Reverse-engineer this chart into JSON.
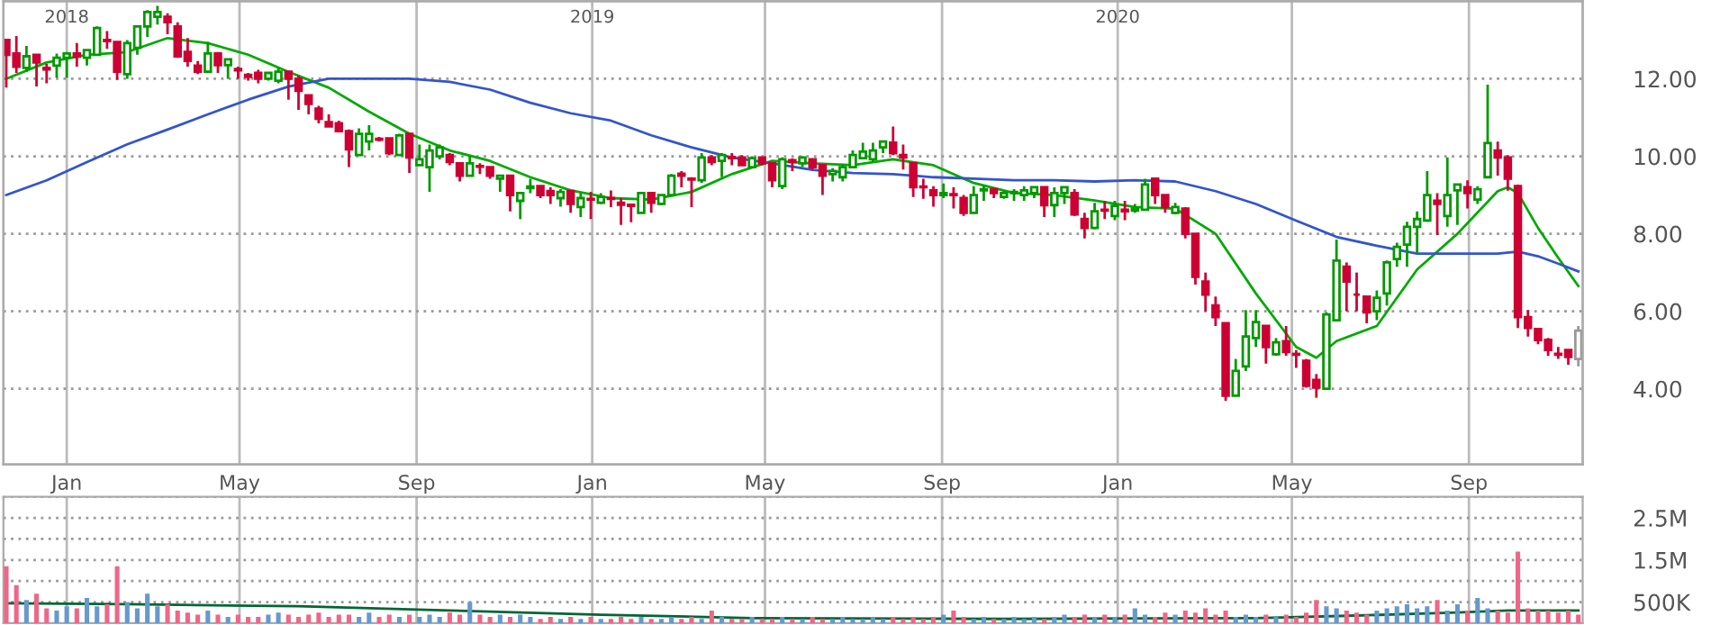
{
  "chart_data": [
    {
      "type": "candlestick",
      "x": [
        "2017-11-20",
        "2017-11-27",
        "2017-12-04",
        "2017-12-11",
        "2017-12-18",
        "2017-12-25",
        "2018-01-01",
        "2018-01-08",
        "2018-01-15",
        "2018-01-22",
        "2018-01-29",
        "2018-02-05",
        "2018-02-12",
        "2018-02-19",
        "2018-02-26",
        "2018-03-05",
        "2018-03-12",
        "2018-03-19",
        "2018-03-26",
        "2018-04-02",
        "2018-04-09",
        "2018-04-16",
        "2018-04-23",
        "2018-04-30",
        "2018-05-07",
        "2018-05-14",
        "2018-05-21",
        "2018-05-28",
        "2018-06-04",
        "2018-06-11",
        "2018-06-18",
        "2018-06-25",
        "2018-07-02",
        "2018-07-09",
        "2018-07-16",
        "2018-07-23",
        "2018-07-30",
        "2018-08-06",
        "2018-08-13",
        "2018-08-20",
        "2018-08-27",
        "2018-09-03",
        "2018-09-10",
        "2018-09-17",
        "2018-09-24",
        "2018-10-01",
        "2018-10-08",
        "2018-10-15",
        "2018-10-22",
        "2018-10-29",
        "2018-11-05",
        "2018-11-12",
        "2018-11-19",
        "2018-11-26",
        "2018-12-03",
        "2018-12-10",
        "2018-12-17",
        "2018-12-24",
        "2018-12-31",
        "2019-01-07",
        "2019-01-14",
        "2019-01-21",
        "2019-01-28",
        "2019-02-04",
        "2019-02-11",
        "2019-02-18",
        "2019-02-25",
        "2019-03-04",
        "2019-03-11",
        "2019-03-18",
        "2019-03-25",
        "2019-04-01",
        "2019-04-08",
        "2019-04-15",
        "2019-04-22",
        "2019-04-29",
        "2019-05-06",
        "2019-05-13",
        "2019-05-20",
        "2019-05-27",
        "2019-06-03",
        "2019-06-10",
        "2019-06-17",
        "2019-06-24",
        "2019-07-01",
        "2019-07-08",
        "2019-07-15",
        "2019-07-22",
        "2019-07-29",
        "2019-08-05",
        "2019-08-12",
        "2019-08-19",
        "2019-08-26",
        "2019-09-02",
        "2019-09-09",
        "2019-09-16",
        "2019-09-23",
        "2019-09-30",
        "2019-10-07",
        "2019-10-14",
        "2019-10-21",
        "2019-10-28",
        "2019-11-04",
        "2019-11-11",
        "2019-11-18",
        "2019-11-25",
        "2019-12-02",
        "2019-12-09",
        "2019-12-16",
        "2019-12-23",
        "2019-12-30",
        "2020-01-06",
        "2020-01-13",
        "2020-01-20",
        "2020-01-27",
        "2020-02-03",
        "2020-02-10",
        "2020-02-17",
        "2020-02-24",
        "2020-03-02",
        "2020-03-09",
        "2020-03-16",
        "2020-03-23",
        "2020-03-30",
        "2020-04-06",
        "2020-04-13",
        "2020-04-20",
        "2020-04-27",
        "2020-05-04",
        "2020-05-11",
        "2020-05-18",
        "2020-05-25",
        "2020-06-01",
        "2020-06-08",
        "2020-06-15",
        "2020-06-22",
        "2020-06-29",
        "2020-07-06",
        "2020-07-13",
        "2020-07-20",
        "2020-07-27",
        "2020-08-03",
        "2020-08-10",
        "2020-08-17",
        "2020-08-24",
        "2020-08-31",
        "2020-09-07",
        "2020-09-14",
        "2020-09-21",
        "2020-09-28",
        "2020-10-05",
        "2020-10-12",
        "2020-10-19",
        "2020-10-26",
        "2020-11-02",
        "2020-11-09",
        "2020-11-16"
      ],
      "ohlc": [
        [
          13.0,
          13.0,
          11.77,
          12.62
        ],
        [
          12.65,
          13.1,
          12.15,
          12.31
        ],
        [
          12.28,
          12.85,
          12.18,
          12.58
        ],
        [
          12.62,
          12.62,
          11.8,
          12.42
        ],
        [
          12.28,
          12.38,
          11.88,
          12.24
        ],
        [
          12.34,
          12.65,
          12.03,
          12.54
        ],
        [
          12.54,
          12.69,
          12.03,
          12.65
        ],
        [
          12.65,
          12.92,
          12.31,
          12.57
        ],
        [
          12.54,
          12.74,
          12.34,
          12.74
        ],
        [
          12.62,
          13.35,
          12.62,
          13.31
        ],
        [
          13.0,
          13.23,
          12.77,
          12.97
        ],
        [
          12.95,
          12.95,
          11.97,
          12.18
        ],
        [
          12.12,
          13.0,
          12.0,
          12.92
        ],
        [
          12.8,
          13.38,
          12.62,
          13.35
        ],
        [
          13.35,
          13.77,
          13.08,
          13.72
        ],
        [
          13.6,
          13.88,
          13.4,
          13.72
        ],
        [
          13.6,
          13.69,
          13.15,
          13.46
        ],
        [
          13.35,
          13.46,
          12.54,
          12.58
        ],
        [
          12.69,
          13.05,
          12.31,
          12.46
        ],
        [
          12.34,
          12.46,
          12.12,
          12.18
        ],
        [
          12.18,
          12.95,
          12.18,
          12.65
        ],
        [
          12.65,
          12.69,
          12.15,
          12.35
        ],
        [
          12.35,
          12.51,
          12.0,
          12.5
        ],
        [
          12.25,
          12.31,
          12.0,
          12.22
        ],
        [
          12.1,
          12.15,
          11.95,
          12.05
        ],
        [
          12.15,
          12.23,
          11.88,
          12.0
        ],
        [
          12.0,
          12.15,
          11.95,
          12.15
        ],
        [
          11.95,
          12.28,
          11.88,
          12.18
        ],
        [
          12.18,
          12.2,
          11.46,
          12.0
        ],
        [
          12.0,
          12.08,
          11.2,
          11.69
        ],
        [
          11.57,
          11.57,
          11.08,
          11.35
        ],
        [
          11.23,
          11.3,
          10.85,
          10.97
        ],
        [
          10.88,
          11.08,
          10.77,
          10.77
        ],
        [
          10.85,
          10.92,
          10.62,
          10.65
        ],
        [
          10.65,
          10.69,
          9.72,
          10.18
        ],
        [
          10.03,
          10.72,
          10.03,
          10.58
        ],
        [
          10.38,
          10.8,
          10.15,
          10.58
        ],
        [
          10.45,
          10.5,
          10.38,
          10.43
        ],
        [
          10.46,
          10.46,
          10.03,
          10.08
        ],
        [
          10.03,
          10.58,
          10.03,
          10.54
        ],
        [
          10.58,
          10.58,
          9.57,
          9.97
        ],
        [
          9.77,
          10.3,
          9.77,
          9.92
        ],
        [
          9.72,
          10.3,
          9.08,
          10.15
        ],
        [
          10.0,
          10.3,
          9.92,
          10.23
        ],
        [
          10.03,
          10.08,
          9.77,
          9.85
        ],
        [
          9.82,
          9.82,
          9.35,
          9.5
        ],
        [
          9.5,
          10.0,
          9.5,
          9.82
        ],
        [
          9.75,
          9.82,
          9.54,
          9.73
        ],
        [
          9.72,
          9.72,
          9.42,
          9.5
        ],
        [
          9.42,
          9.5,
          9.08,
          9.5
        ],
        [
          9.5,
          9.5,
          8.58,
          9.0
        ],
        [
          8.85,
          9.05,
          8.38,
          9.05
        ],
        [
          9.18,
          9.42,
          9.05,
          9.22
        ],
        [
          9.23,
          9.23,
          8.92,
          9.0
        ],
        [
          9.1,
          9.2,
          8.77,
          9.0
        ],
        [
          8.92,
          9.15,
          8.7,
          9.08
        ],
        [
          9.1,
          9.1,
          8.54,
          8.77
        ],
        [
          8.69,
          9.05,
          8.43,
          8.92
        ],
        [
          8.9,
          9.08,
          8.38,
          8.88
        ],
        [
          8.8,
          9.05,
          8.77,
          8.95
        ],
        [
          8.92,
          9.12,
          8.69,
          8.9
        ],
        [
          8.8,
          8.92,
          8.23,
          8.75
        ],
        [
          8.75,
          8.77,
          8.3,
          8.72
        ],
        [
          8.54,
          9.05,
          8.54,
          9.05
        ],
        [
          9.05,
          9.05,
          8.54,
          8.8
        ],
        [
          8.77,
          9.0,
          8.74,
          9.0
        ],
        [
          9.0,
          9.54,
          9.0,
          9.5
        ],
        [
          9.55,
          9.62,
          9.2,
          9.5
        ],
        [
          9.42,
          9.46,
          8.69,
          9.4
        ],
        [
          9.38,
          10.08,
          9.31,
          9.97
        ],
        [
          9.97,
          10.03,
          9.77,
          9.85
        ],
        [
          9.88,
          10.08,
          9.46,
          10.03
        ],
        [
          9.98,
          10.08,
          9.77,
          9.95
        ],
        [
          9.97,
          10.03,
          9.77,
          9.77
        ],
        [
          9.72,
          10.0,
          9.69,
          9.95
        ],
        [
          9.97,
          9.97,
          9.77,
          9.82
        ],
        [
          9.82,
          9.85,
          9.2,
          9.38
        ],
        [
          9.23,
          9.97,
          9.15,
          9.92
        ],
        [
          9.9,
          9.95,
          9.62,
          9.85
        ],
        [
          9.82,
          10.0,
          9.72,
          9.97
        ],
        [
          9.92,
          9.92,
          9.66,
          9.72
        ],
        [
          9.77,
          9.77,
          9.0,
          9.5
        ],
        [
          9.54,
          9.69,
          9.35,
          9.62
        ],
        [
          9.46,
          9.8,
          9.35,
          9.72
        ],
        [
          9.72,
          10.15,
          9.69,
          10.03
        ],
        [
          9.95,
          10.35,
          9.92,
          10.12
        ],
        [
          9.92,
          10.35,
          9.85,
          10.15
        ],
        [
          10.23,
          10.38,
          10.08,
          10.38
        ],
        [
          10.35,
          10.77,
          10.03,
          10.08
        ],
        [
          10.03,
          10.3,
          9.66,
          9.97
        ],
        [
          9.82,
          9.82,
          8.95,
          9.2
        ],
        [
          9.22,
          9.42,
          8.9,
          9.2
        ],
        [
          9.12,
          9.23,
          8.7,
          9.0
        ],
        [
          9.0,
          9.3,
          8.92,
          9.05
        ],
        [
          9.02,
          9.2,
          8.65,
          9.0
        ],
        [
          8.92,
          9.0,
          8.46,
          8.54
        ],
        [
          8.54,
          9.23,
          8.54,
          9.0
        ],
        [
          9.12,
          9.23,
          8.85,
          9.15
        ],
        [
          9.15,
          9.15,
          8.92,
          9.05
        ],
        [
          8.95,
          9.1,
          8.9,
          9.05
        ],
        [
          9.05,
          9.15,
          8.85,
          9.08
        ],
        [
          9.0,
          9.23,
          8.85,
          9.12
        ],
        [
          9.05,
          9.2,
          8.92,
          9.2
        ],
        [
          9.2,
          9.2,
          8.43,
          8.74
        ],
        [
          8.74,
          9.2,
          8.43,
          9.05
        ],
        [
          9.05,
          9.2,
          8.77,
          9.2
        ],
        [
          9.05,
          9.15,
          8.46,
          8.5
        ],
        [
          8.38,
          8.54,
          7.88,
          8.15
        ],
        [
          8.15,
          8.8,
          8.12,
          8.58
        ],
        [
          8.62,
          8.85,
          8.38,
          8.6
        ],
        [
          8.46,
          8.85,
          8.35,
          8.72
        ],
        [
          8.62,
          8.85,
          8.35,
          8.58
        ],
        [
          8.6,
          8.77,
          8.54,
          8.65
        ],
        [
          8.62,
          9.42,
          8.62,
          9.27
        ],
        [
          9.42,
          9.42,
          8.77,
          9.0
        ],
        [
          9.0,
          9.0,
          8.54,
          8.69
        ],
        [
          8.54,
          8.8,
          8.5,
          8.69
        ],
        [
          8.65,
          8.69,
          7.88,
          8.0
        ],
        [
          8.0,
          8.0,
          6.69,
          6.89
        ],
        [
          6.77,
          7.0,
          6.0,
          6.43
        ],
        [
          6.15,
          6.38,
          5.62,
          5.85
        ],
        [
          5.69,
          5.69,
          3.69,
          3.82
        ],
        [
          3.82,
          4.77,
          3.82,
          4.46
        ],
        [
          4.58,
          6.03,
          4.46,
          5.35
        ],
        [
          5.31,
          6.03,
          5.08,
          5.72
        ],
        [
          5.62,
          5.62,
          4.65,
          5.08
        ],
        [
          4.89,
          5.31,
          4.85,
          5.2
        ],
        [
          5.23,
          5.62,
          4.85,
          4.95
        ],
        [
          4.9,
          5.0,
          4.54,
          4.88
        ],
        [
          4.72,
          4.77,
          4.03,
          4.08
        ],
        [
          4.23,
          4.38,
          3.77,
          4.03
        ],
        [
          4.0,
          5.97,
          3.97,
          5.92
        ],
        [
          5.77,
          7.85,
          5.77,
          7.31
        ],
        [
          7.15,
          7.26,
          6.0,
          6.77
        ],
        [
          6.43,
          7.0,
          6.0,
          6.43
        ],
        [
          6.38,
          6.38,
          5.69,
          5.97
        ],
        [
          6.0,
          6.54,
          5.77,
          6.35
        ],
        [
          6.46,
          7.31,
          6.15,
          7.26
        ],
        [
          7.35,
          7.77,
          7.15,
          7.66
        ],
        [
          7.72,
          8.31,
          7.15,
          8.18
        ],
        [
          8.18,
          8.58,
          7.48,
          8.38
        ],
        [
          8.34,
          9.62,
          8.31,
          9.0
        ],
        [
          8.85,
          9.05,
          7.97,
          8.77
        ],
        [
          8.46,
          9.97,
          8.18,
          9.0
        ],
        [
          9.12,
          9.27,
          8.23,
          9.27
        ],
        [
          9.2,
          9.38,
          8.65,
          9.05
        ],
        [
          8.88,
          9.23,
          8.77,
          9.15
        ],
        [
          9.46,
          11.85,
          9.46,
          10.34
        ],
        [
          10.15,
          10.38,
          9.5,
          9.97
        ],
        [
          9.97,
          10.03,
          9.11,
          9.42
        ],
        [
          9.23,
          9.27,
          5.57,
          5.85
        ],
        [
          5.85,
          6.03,
          5.35,
          5.57
        ],
        [
          5.54,
          5.57,
          5.15,
          5.26
        ],
        [
          5.26,
          5.31,
          4.85,
          5.0
        ],
        [
          4.9,
          5.08,
          4.77,
          4.88
        ],
        [
          5.0,
          5.0,
          4.62,
          4.82
        ],
        [
          4.77,
          5.62,
          4.58,
          5.5
        ]
      ],
      "colors": [
        "#cc0033",
        "#cc0033",
        "#009900",
        "#cc0033",
        "#cc0033",
        "#009900",
        "#009900",
        "#cc0033",
        "#009900",
        "#009900",
        "#cc0033",
        "#cc0033",
        "#009900",
        "#009900",
        "#009900",
        "#009900",
        "#cc0033",
        "#cc0033",
        "#cc0033",
        "#cc0033",
        "#009900",
        "#cc0033",
        "#009900",
        "#cc0033",
        "#cc0033",
        "#cc0033",
        "#009900",
        "#009900",
        "#cc0033",
        "#cc0033",
        "#cc0033",
        "#cc0033",
        "#cc0033",
        "#cc0033",
        "#cc0033",
        "#009900",
        "#009900",
        "#cc0033",
        "#cc0033",
        "#009900",
        "#cc0033",
        "#009900",
        "#009900",
        "#009900",
        "#cc0033",
        "#cc0033",
        "#009900",
        "#cc0033",
        "#cc0033",
        "#009900",
        "#cc0033",
        "#009900",
        "#009900",
        "#cc0033",
        "#cc0033",
        "#009900",
        "#cc0033",
        "#009900",
        "#cc0033",
        "#009900",
        "#cc0033",
        "#cc0033",
        "#cc0033",
        "#009900",
        "#cc0033",
        "#009900",
        "#009900",
        "#cc0033",
        "#cc0033",
        "#009900",
        "#cc0033",
        "#009900",
        "#cc0033",
        "#cc0033",
        "#009900",
        "#cc0033",
        "#cc0033",
        "#009900",
        "#cc0033",
        "#009900",
        "#cc0033",
        "#cc0033",
        "#009900",
        "#009900",
        "#009900",
        "#009900",
        "#009900",
        "#009900",
        "#cc0033",
        "#cc0033",
        "#cc0033",
        "#cc0033",
        "#cc0033",
        "#009900",
        "#cc0033",
        "#cc0033",
        "#009900",
        "#009900",
        "#cc0033",
        "#009900",
        "#009900",
        "#009900",
        "#009900",
        "#cc0033",
        "#009900",
        "#009900",
        "#cc0033",
        "#cc0033",
        "#009900",
        "#cc0033",
        "#009900",
        "#cc0033",
        "#009900",
        "#009900",
        "#cc0033",
        "#cc0033",
        "#009900",
        "#cc0033",
        "#cc0033",
        "#cc0033",
        "#cc0033",
        "#cc0033",
        "#009900",
        "#009900",
        "#009900",
        "#cc0033",
        "#009900",
        "#cc0033",
        "#cc0033",
        "#cc0033",
        "#cc0033",
        "#009900",
        "#009900",
        "#cc0033",
        "#cc0033",
        "#cc0033",
        "#009900",
        "#009900",
        "#009900",
        "#009900",
        "#009900",
        "#009900",
        "#cc0033",
        "#009900",
        "#009900",
        "#cc0033",
        "#009900",
        "#009900",
        "#cc0033",
        "#cc0033",
        "#cc0033",
        "#cc0033",
        "#cc0033",
        "#cc0033",
        "#cc0033",
        "#cc0033",
        "#999999"
      ],
      "series": [
        {
          "type": "line",
          "color": "#00aa00",
          "x": [
            "2017-11-20",
            "2017-12-18",
            "2018-01-15",
            "2018-02-12",
            "2018-03-12",
            "2018-04-09",
            "2018-05-07",
            "2018-06-04",
            "2018-07-02",
            "2018-07-30",
            "2018-08-27",
            "2018-09-24",
            "2018-10-22",
            "2018-11-19",
            "2018-12-17",
            "2019-01-14",
            "2019-02-11",
            "2019-03-11",
            "2019-04-08",
            "2019-05-06",
            "2019-06-03",
            "2019-07-01",
            "2019-07-29",
            "2019-08-26",
            "2019-09-23",
            "2019-10-21",
            "2019-11-18",
            "2019-12-16",
            "2020-01-13",
            "2020-02-10",
            "2020-03-09",
            "2020-04-06",
            "2020-05-04",
            "2020-05-18",
            "2020-06-01",
            "2020-06-29",
            "2020-07-27",
            "2020-08-24",
            "2020-09-21",
            "2020-09-28",
            "2020-10-05",
            "2020-10-19",
            "2020-11-02",
            "2020-11-16"
          ],
          "values": [
            12.0,
            12.42,
            12.62,
            12.69,
            13.05,
            12.92,
            12.62,
            12.18,
            11.77,
            11.15,
            10.58,
            10.15,
            9.88,
            9.46,
            9.12,
            8.92,
            8.88,
            9.08,
            9.54,
            9.88,
            9.82,
            9.77,
            9.92,
            9.77,
            9.31,
            9.05,
            9.0,
            8.86,
            8.69,
            8.65,
            8.0,
            6.46,
            5.08,
            4.8,
            5.23,
            5.62,
            7.08,
            8.0,
            9.1,
            9.2,
            9.05,
            8.15,
            7.38,
            6.65
          ]
        },
        {
          "type": "line",
          "color": "#3355cc",
          "x": [
            "2017-11-20",
            "2017-12-18",
            "2018-01-15",
            "2018-02-12",
            "2018-03-12",
            "2018-04-09",
            "2018-05-07",
            "2018-06-04",
            "2018-07-02",
            "2018-07-30",
            "2018-08-27",
            "2018-09-24",
            "2018-10-22",
            "2018-11-19",
            "2018-12-17",
            "2019-01-14",
            "2019-02-11",
            "2019-03-11",
            "2019-04-08",
            "2019-05-06",
            "2019-06-03",
            "2019-07-01",
            "2019-07-29",
            "2019-08-26",
            "2019-09-23",
            "2019-10-21",
            "2019-11-18",
            "2019-12-16",
            "2020-01-13",
            "2020-02-10",
            "2020-03-09",
            "2020-04-06",
            "2020-05-04",
            "2020-06-01",
            "2020-06-29",
            "2020-07-27",
            "2020-08-24",
            "2020-09-21",
            "2020-10-05",
            "2020-10-19",
            "2020-11-02",
            "2020-11-16"
          ],
          "values": [
            9.0,
            9.38,
            9.85,
            10.31,
            10.69,
            11.08,
            11.46,
            11.8,
            12.0,
            12.0,
            12.0,
            11.92,
            11.72,
            11.38,
            11.11,
            10.92,
            10.54,
            10.23,
            9.97,
            9.82,
            9.65,
            9.57,
            9.54,
            9.46,
            9.42,
            9.38,
            9.38,
            9.35,
            9.38,
            9.35,
            9.1,
            8.77,
            8.34,
            7.92,
            7.69,
            7.49,
            7.49,
            7.49,
            7.54,
            7.42,
            7.23,
            7.03
          ]
        }
      ],
      "xlim": [
        "2017-11-18",
        "2020-11-19"
      ],
      "xticks": [
        {
          "value": "2018-01-01",
          "label": "Jan"
        },
        {
          "value": "2018-05-01",
          "label": "May"
        },
        {
          "value": "2018-09-01",
          "label": "Sep"
        },
        {
          "value": "2019-01-01",
          "label": "Jan"
        },
        {
          "value": "2019-05-01",
          "label": "May"
        },
        {
          "value": "2019-09-01",
          "label": "Sep"
        },
        {
          "value": "2020-01-01",
          "label": "Jan"
        },
        {
          "value": "2020-05-01",
          "label": "May"
        },
        {
          "value": "2020-09-01",
          "label": "Sep"
        }
      ],
      "x2lim": [
        "2017-11-18",
        "2020-11-19"
      ],
      "x2ticks": [
        {
          "value": "2018-01-01",
          "label": "2018"
        },
        {
          "value": "2019-01-01",
          "label": "2019"
        },
        {
          "value": "2020-01-01",
          "label": "2020"
        }
      ],
      "ylim": [
        2.05,
        14.0
      ],
      "yticks": [
        {
          "value": 4,
          "label": "4.00"
        },
        {
          "value": 6,
          "label": "6.00"
        },
        {
          "value": 8,
          "label": "8.00"
        },
        {
          "value": 10,
          "label": "10.00"
        },
        {
          "value": 12,
          "label": "12.00"
        }
      ],
      "grid": true
    },
    {
      "type": "bar",
      "x": [
        "2017-11-20",
        "2017-11-27",
        "2017-12-04",
        "2017-12-11",
        "2017-12-18",
        "2017-12-25",
        "2018-01-01",
        "2018-01-08",
        "2018-01-15",
        "2018-01-22",
        "2018-01-29",
        "2018-02-05",
        "2018-02-12",
        "2018-02-19",
        "2018-02-26",
        "2018-03-05",
        "2018-03-12",
        "2018-03-19",
        "2018-03-26",
        "2018-04-02",
        "2018-04-09",
        "2018-04-16",
        "2018-04-23",
        "2018-04-30",
        "2018-05-07",
        "2018-05-14",
        "2018-05-21",
        "2018-05-28",
        "2018-06-04",
        "2018-06-11",
        "2018-06-18",
        "2018-06-25",
        "2018-07-02",
        "2018-07-09",
        "2018-07-16",
        "2018-07-23",
        "2018-07-30",
        "2018-08-06",
        "2018-08-13",
        "2018-08-20",
        "2018-08-27",
        "2018-09-03",
        "2018-09-10",
        "2018-09-17",
        "2018-09-24",
        "2018-10-01",
        "2018-10-08",
        "2018-10-15",
        "2018-10-22",
        "2018-10-29",
        "2018-11-05",
        "2018-11-12",
        "2018-11-19",
        "2018-11-26",
        "2018-12-03",
        "2018-12-10",
        "2018-12-17",
        "2018-12-24",
        "2018-12-31",
        "2019-01-07",
        "2019-01-14",
        "2019-01-21",
        "2019-01-28",
        "2019-02-04",
        "2019-02-11",
        "2019-02-18",
        "2019-02-25",
        "2019-03-04",
        "2019-03-11",
        "2019-03-18",
        "2019-03-25",
        "2019-04-01",
        "2019-04-08",
        "2019-04-15",
        "2019-04-22",
        "2019-04-29",
        "2019-05-06",
        "2019-05-13",
        "2019-05-20",
        "2019-05-27",
        "2019-06-03",
        "2019-06-10",
        "2019-06-17",
        "2019-06-24",
        "2019-07-01",
        "2019-07-08",
        "2019-07-15",
        "2019-07-22",
        "2019-07-29",
        "2019-08-05",
        "2019-08-12",
        "2019-08-19",
        "2019-08-26",
        "2019-09-02",
        "2019-09-09",
        "2019-09-16",
        "2019-09-23",
        "2019-09-30",
        "2019-10-07",
        "2019-10-14",
        "2019-10-21",
        "2019-10-28",
        "2019-11-04",
        "2019-11-11",
        "2019-11-18",
        "2019-11-25",
        "2019-12-02",
        "2019-12-09",
        "2019-12-16",
        "2019-12-23",
        "2019-12-30",
        "2020-01-06",
        "2020-01-13",
        "2020-01-20",
        "2020-01-27",
        "2020-02-03",
        "2020-02-10",
        "2020-02-17",
        "2020-02-24",
        "2020-03-02",
        "2020-03-09",
        "2020-03-16",
        "2020-03-23",
        "2020-03-30",
        "2020-04-06",
        "2020-04-13",
        "2020-04-20",
        "2020-04-27",
        "2020-05-04",
        "2020-05-11",
        "2020-05-18",
        "2020-05-25",
        "2020-06-01",
        "2020-06-08",
        "2020-06-15",
        "2020-06-22",
        "2020-06-29",
        "2020-07-06",
        "2020-07-13",
        "2020-07-20",
        "2020-07-27",
        "2020-08-03",
        "2020-08-10",
        "2020-08-17",
        "2020-08-24",
        "2020-08-31",
        "2020-09-07",
        "2020-09-14",
        "2020-09-21",
        "2020-09-28",
        "2020-10-05",
        "2020-10-12",
        "2020-10-19",
        "2020-10-26",
        "2020-11-02",
        "2020-11-09",
        "2020-11-16"
      ],
      "series": [
        {
          "type": "bar",
          "values": [
            1350000,
            900000,
            550000,
            700000,
            350000,
            300000,
            400000,
            350000,
            600000,
            400000,
            450000,
            1350000,
            500000,
            350000,
            700000,
            400000,
            450000,
            300000,
            250000,
            200000,
            300000,
            200000,
            150000,
            200000,
            150000,
            150000,
            200000,
            250000,
            200000,
            150000,
            200000,
            250000,
            150000,
            200000,
            200000,
            150000,
            250000,
            150000,
            200000,
            150000,
            200000,
            150000,
            200000,
            150000,
            250000,
            200000,
            500000,
            200000,
            150000,
            200000,
            150000,
            200000,
            150000,
            100000,
            150000,
            100000,
            150000,
            100000,
            150000,
            100000,
            100000,
            150000,
            100000,
            150000,
            100000,
            100000,
            150000,
            100000,
            150000,
            100000,
            300000,
            150000,
            100000,
            100000,
            150000,
            100000,
            100000,
            150000,
            100000,
            100000,
            150000,
            100000,
            100000,
            150000,
            100000,
            100000,
            150000,
            100000,
            150000,
            100000,
            150000,
            100000,
            150000,
            200000,
            300000,
            150000,
            100000,
            150000,
            100000,
            100000,
            150000,
            100000,
            150000,
            100000,
            150000,
            200000,
            150000,
            200000,
            150000,
            200000,
            150000,
            200000,
            350000,
            200000,
            150000,
            250000,
            200000,
            300000,
            250000,
            350000,
            200000,
            300000,
            150000,
            200000,
            150000,
            200000,
            150000,
            200000,
            150000,
            250000,
            550000,
            400000,
            350000,
            300000,
            250000,
            200000,
            300000,
            350000,
            400000,
            450000,
            350000,
            400000,
            550000,
            300000,
            450000,
            300000,
            600000,
            350000,
            300000,
            250000,
            1700000,
            350000,
            300000,
            300000,
            250000,
            300000,
            200000
          ],
          "colors": [
            "#ee6688",
            "#ee6688",
            "#6699cc",
            "#ee6688",
            "#ee6688",
            "#6699cc",
            "#6699cc",
            "#ee6688",
            "#6699cc",
            "#6699cc",
            "#ee6688",
            "#ee6688",
            "#6699cc",
            "#6699cc",
            "#6699cc",
            "#6699cc",
            "#ee6688",
            "#ee6688",
            "#ee6688",
            "#ee6688",
            "#6699cc",
            "#ee6688",
            "#6699cc",
            "#ee6688",
            "#ee6688",
            "#ee6688",
            "#6699cc",
            "#6699cc",
            "#ee6688",
            "#ee6688",
            "#ee6688",
            "#ee6688",
            "#ee6688",
            "#ee6688",
            "#ee6688",
            "#6699cc",
            "#6699cc",
            "#ee6688",
            "#ee6688",
            "#6699cc",
            "#ee6688",
            "#6699cc",
            "#6699cc",
            "#6699cc",
            "#ee6688",
            "#ee6688",
            "#6699cc",
            "#ee6688",
            "#ee6688",
            "#6699cc",
            "#ee6688",
            "#6699cc",
            "#6699cc",
            "#ee6688",
            "#ee6688",
            "#6699cc",
            "#ee6688",
            "#6699cc",
            "#ee6688",
            "#6699cc",
            "#ee6688",
            "#ee6688",
            "#ee6688",
            "#6699cc",
            "#ee6688",
            "#6699cc",
            "#6699cc",
            "#ee6688",
            "#ee6688",
            "#6699cc",
            "#ee6688",
            "#6699cc",
            "#ee6688",
            "#ee6688",
            "#6699cc",
            "#ee6688",
            "#ee6688",
            "#6699cc",
            "#ee6688",
            "#6699cc",
            "#ee6688",
            "#ee6688",
            "#6699cc",
            "#6699cc",
            "#6699cc",
            "#6699cc",
            "#6699cc",
            "#6699cc",
            "#ee6688",
            "#ee6688",
            "#ee6688",
            "#ee6688",
            "#ee6688",
            "#6699cc",
            "#ee6688",
            "#ee6688",
            "#6699cc",
            "#6699cc",
            "#ee6688",
            "#6699cc",
            "#6699cc",
            "#6699cc",
            "#6699cc",
            "#ee6688",
            "#6699cc",
            "#6699cc",
            "#ee6688",
            "#ee6688",
            "#6699cc",
            "#ee6688",
            "#6699cc",
            "#ee6688",
            "#6699cc",
            "#6699cc",
            "#ee6688",
            "#ee6688",
            "#6699cc",
            "#ee6688",
            "#ee6688",
            "#ee6688",
            "#ee6688",
            "#ee6688",
            "#6699cc",
            "#6699cc",
            "#6699cc",
            "#ee6688",
            "#6699cc",
            "#ee6688",
            "#ee6688",
            "#ee6688",
            "#ee6688",
            "#6699cc",
            "#6699cc",
            "#ee6688",
            "#ee6688",
            "#ee6688",
            "#6699cc",
            "#6699cc",
            "#6699cc",
            "#6699cc",
            "#6699cc",
            "#6699cc",
            "#ee6688",
            "#6699cc",
            "#6699cc",
            "#ee6688",
            "#6699cc",
            "#6699cc",
            "#ee6688",
            "#ee6688",
            "#ee6688",
            "#ee6688",
            "#ee6688",
            "#ee6688",
            "#ee6688",
            "#ee6688",
            "#ee6688"
          ]
        },
        {
          "type": "line",
          "color": "#006633",
          "x": [
            "2017-11-20",
            "2018-02-12",
            "2018-06-11",
            "2018-09-24",
            "2019-01-07",
            "2019-04-22",
            "2019-10-14",
            "2020-04-06",
            "2020-06-15",
            "2020-08-24",
            "2020-09-28",
            "2020-11-16"
          ],
          "values": [
            470000,
            450000,
            400000,
            300000,
            200000,
            120000,
            100000,
            120000,
            180000,
            250000,
            300000,
            300000
          ]
        }
      ],
      "xlim": [
        "2017-11-18",
        "2020-11-19"
      ],
      "xticks": [
        {
          "value": "2018-01-01",
          "label": null
        },
        {
          "value": "2018-05-01",
          "label": null
        },
        {
          "value": "2018-09-01",
          "label": null
        },
        {
          "value": "2019-01-01",
          "label": null
        },
        {
          "value": "2019-05-01",
          "label": null
        },
        {
          "value": "2019-09-01",
          "label": null
        },
        {
          "value": "2020-01-01",
          "label": null
        },
        {
          "value": "2020-05-01",
          "label": null
        },
        {
          "value": "2020-09-01",
          "label": null
        }
      ],
      "ylim": [
        0,
        3000000
      ],
      "yticks": [
        {
          "value": 500000,
          "label": "500K"
        },
        {
          "value": 1000000,
          "label": null
        },
        {
          "value": 1500000,
          "label": "1.5M"
        },
        {
          "value": 2000000,
          "label": null
        },
        {
          "value": 2500000,
          "label": "2.5M"
        },
        {
          "value": 3000000,
          "label": null
        }
      ],
      "tick_labels": "y",
      "grid": true
    }
  ]
}
